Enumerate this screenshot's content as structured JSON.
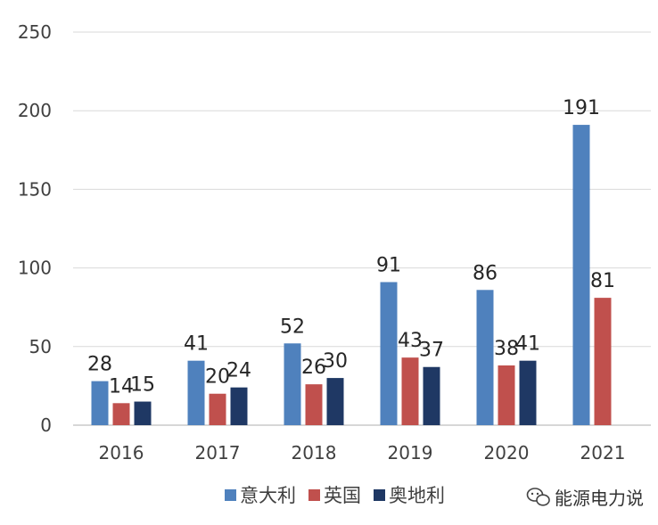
{
  "chart_data": {
    "type": "bar",
    "categories": [
      "2016",
      "2017",
      "2018",
      "2019",
      "2020",
      "2021"
    ],
    "series": [
      {
        "name": "意大利",
        "values": [
          28,
          41,
          52,
          91,
          86,
          191
        ],
        "color": "#4f81bd"
      },
      {
        "name": "英国",
        "values": [
          14,
          20,
          26,
          43,
          38,
          81
        ],
        "color": "#c0504d"
      },
      {
        "name": "奥地利",
        "values": [
          15,
          24,
          30,
          37,
          41,
          null
        ],
        "color": "#1f3864"
      }
    ],
    "y_ticks": [
      "0",
      "50",
      "100",
      "150",
      "200",
      "250"
    ],
    "ylim": [
      0,
      250
    ],
    "grid": true,
    "legend_position": "bottom"
  },
  "watermark": {
    "text": "能源电力说",
    "icon": "wechat-icon"
  }
}
